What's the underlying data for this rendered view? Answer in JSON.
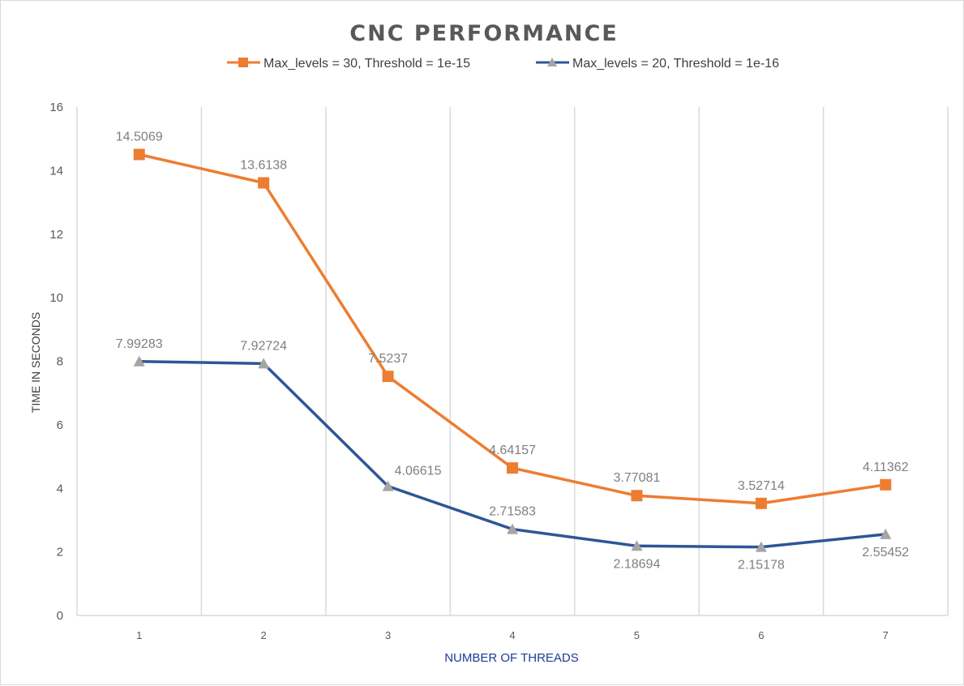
{
  "chart_data": {
    "type": "line",
    "title": "CNC PERFORMANCE",
    "xlabel": "NUMBER OF THREADS",
    "ylabel": "TIME IN SECONDS",
    "categories": [
      "1",
      "2",
      "3",
      "4",
      "5",
      "6",
      "7"
    ],
    "ylim": [
      0,
      16
    ],
    "yticks": [
      "0",
      "2",
      "4",
      "6",
      "8",
      "10",
      "12",
      "14",
      "16"
    ],
    "grid": "vertical",
    "legend_position": "top",
    "series": [
      {
        "name": "Max_levels = 30, Threshold = 1e-15",
        "color": "#ed7d31",
        "marker": "square",
        "values": [
          14.5069,
          13.6138,
          7.5237,
          4.64157,
          3.77081,
          3.52714,
          4.11362
        ],
        "labels": [
          "14.5069",
          "13.6138",
          "7.5237",
          "4.64157",
          "3.77081",
          "3.52714",
          "4.11362"
        ]
      },
      {
        "name": "Max_levels = 20, Threshold = 1e-16",
        "color": "#2f5597",
        "marker_color": "#a5a5a5",
        "marker": "triangle",
        "values": [
          7.99283,
          7.92724,
          4.06615,
          2.71583,
          2.18694,
          2.15178,
          2.55452
        ],
        "labels": [
          "7.99283",
          "7.92724",
          "4.06615",
          "2.71583",
          "2.18694",
          "2.15178",
          "2.55452"
        ]
      }
    ]
  }
}
